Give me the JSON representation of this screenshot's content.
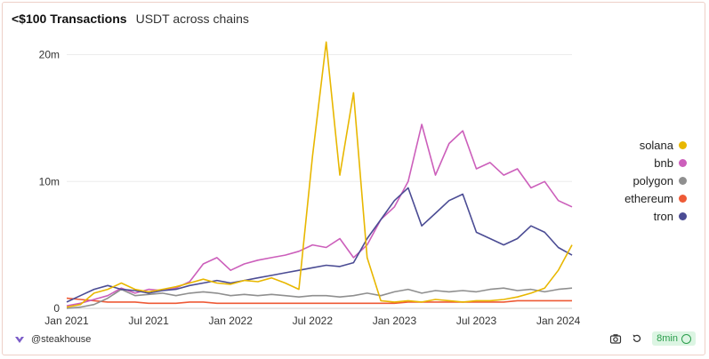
{
  "header": {
    "title": "<$100 Transactions",
    "subtitle": "USDT across chains"
  },
  "footer": {
    "author": "@steakhouse",
    "refresh_badge": "8min"
  },
  "legend": [
    {
      "label": "solana",
      "color": "#e8b700"
    },
    {
      "label": "bnb",
      "color": "#cc5fbb"
    },
    {
      "label": "polygon",
      "color": "#8f8f8f"
    },
    {
      "label": "ethereum",
      "color": "#ee5a36"
    },
    {
      "label": "tron",
      "color": "#4b4c94"
    }
  ],
  "chart_data": {
    "type": "line",
    "title": "<$100 Transactions",
    "subtitle": "USDT across chains",
    "x_ticks": [
      "Jan 2021",
      "Jul 2021",
      "Jan 2022",
      "Jul 2022",
      "Jan 2023",
      "Jul 2023",
      "Jan 2024"
    ],
    "y_ticks": [
      0,
      10,
      20
    ],
    "y_tick_labels": [
      "0",
      "10m",
      "20m"
    ],
    "ylim": [
      0,
      22
    ],
    "x": [
      "2021-01",
      "2021-02",
      "2021-03",
      "2021-04",
      "2021-05",
      "2021-06",
      "2021-07",
      "2021-08",
      "2021-09",
      "2021-10",
      "2021-11",
      "2021-12",
      "2022-01",
      "2022-02",
      "2022-03",
      "2022-04",
      "2022-05",
      "2022-06",
      "2022-07",
      "2022-08",
      "2022-09",
      "2022-10",
      "2022-11",
      "2022-12",
      "2023-01",
      "2023-02",
      "2023-03",
      "2023-04",
      "2023-05",
      "2023-06",
      "2023-07",
      "2023-08",
      "2023-09",
      "2023-10",
      "2023-11",
      "2023-12",
      "2024-01",
      "2024-02"
    ],
    "grid": true,
    "series": [
      {
        "name": "solana",
        "color": "#e8b700",
        "values": [
          0.1,
          0.3,
          1.2,
          1.5,
          2.0,
          1.5,
          1.3,
          1.5,
          1.7,
          2.0,
          2.3,
          2.0,
          1.9,
          2.2,
          2.1,
          2.4,
          2.0,
          1.5,
          12.0,
          21.0,
          10.5,
          17.0,
          4.0,
          0.6,
          0.5,
          0.6,
          0.5,
          0.7,
          0.6,
          0.5,
          0.6,
          0.6,
          0.7,
          0.9,
          1.2,
          1.6,
          3.0,
          5.0
        ]
      },
      {
        "name": "bnb",
        "color": "#cc5fbb",
        "values": [
          0.2,
          0.4,
          0.7,
          1.0,
          1.6,
          1.2,
          1.5,
          1.4,
          1.6,
          2.1,
          3.5,
          4.0,
          3.0,
          3.5,
          3.8,
          4.0,
          4.2,
          4.5,
          5.0,
          4.8,
          5.5,
          4.0,
          5.0,
          7.0,
          8.0,
          10.0,
          14.5,
          10.5,
          13.0,
          14.0,
          11.0,
          11.5,
          10.5,
          11.0,
          9.5,
          10.0,
          8.5,
          8.0
        ]
      },
      {
        "name": "polygon",
        "color": "#8f8f8f",
        "values": [
          0.0,
          0.1,
          0.3,
          0.8,
          1.5,
          1.0,
          1.1,
          1.2,
          1.0,
          1.2,
          1.3,
          1.2,
          1.0,
          1.1,
          1.0,
          1.1,
          1.0,
          0.9,
          1.0,
          1.0,
          0.9,
          1.0,
          1.2,
          1.0,
          1.3,
          1.5,
          1.2,
          1.4,
          1.3,
          1.4,
          1.3,
          1.5,
          1.6,
          1.4,
          1.5,
          1.3,
          1.5,
          1.6
        ]
      },
      {
        "name": "ethereum",
        "color": "#ee5a36",
        "values": [
          0.8,
          0.7,
          0.6,
          0.5,
          0.5,
          0.5,
          0.4,
          0.4,
          0.4,
          0.5,
          0.5,
          0.4,
          0.4,
          0.4,
          0.4,
          0.4,
          0.4,
          0.4,
          0.4,
          0.4,
          0.4,
          0.4,
          0.4,
          0.4,
          0.4,
          0.5,
          0.5,
          0.5,
          0.5,
          0.5,
          0.5,
          0.5,
          0.5,
          0.6,
          0.6,
          0.6,
          0.6,
          0.6
        ]
      },
      {
        "name": "tron",
        "color": "#4b4c94",
        "values": [
          0.5,
          1.0,
          1.5,
          1.8,
          1.5,
          1.4,
          1.2,
          1.4,
          1.5,
          1.8,
          2.0,
          2.2,
          2.0,
          2.2,
          2.4,
          2.6,
          2.8,
          3.0,
          3.2,
          3.4,
          3.3,
          3.6,
          5.5,
          7.0,
          8.5,
          9.5,
          6.5,
          7.5,
          8.5,
          9.0,
          6.0,
          5.5,
          5.0,
          5.5,
          6.5,
          6.0,
          4.8,
          4.2
        ]
      }
    ]
  }
}
